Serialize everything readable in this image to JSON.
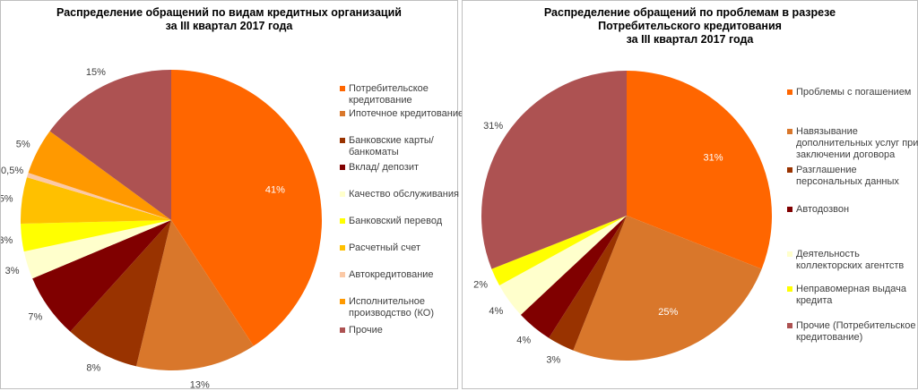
{
  "chart_data": [
    {
      "type": "pie",
      "title": "Распределение обращений по видам кредитных организаций\nза III квартал 2017 года",
      "legend_position": "right",
      "slices": [
        {
          "name": "Потребительское кредитование",
          "value": 41,
          "label": "41%",
          "color": "#FF6600"
        },
        {
          "name": "Ипотечное кредитование",
          "value": 13,
          "label": "13%",
          "color": "#D9772B"
        },
        {
          "name": "Банковские карты/банкоматы",
          "value": 8,
          "label": "8%",
          "color": "#993300"
        },
        {
          "name": "Вклад/ депозит",
          "value": 7,
          "label": "7%",
          "color": "#800000"
        },
        {
          "name": "Качество обслуживания",
          "value": 3,
          "label": "3%",
          "color": "#FFFFCC"
        },
        {
          "name": "Банковский перевод",
          "value": 3,
          "label": "3%",
          "color": "#FFFF00"
        },
        {
          "name": "Расчетный счет",
          "value": 5,
          "label": "5%",
          "color": "#FFC000"
        },
        {
          "name": "Автокредитование",
          "value": 0.5,
          "label": "0,5%",
          "color": "#FBC9A6"
        },
        {
          "name": "Исполнительное производство (КО)",
          "value": 5,
          "label": "5%",
          "color": "#FF9900"
        },
        {
          "name": "Прочие",
          "value": 15,
          "label": "15%",
          "color": "#AD5252"
        }
      ]
    },
    {
      "type": "pie",
      "title": "Распределение обращений по проблемам в разрезе\nПотребительского  кредитования\nза III квартал 2017 года",
      "legend_position": "right",
      "slices": [
        {
          "name": "Проблемы с погашением",
          "value": 31,
          "label": "31%",
          "color": "#FF6600"
        },
        {
          "name": "Навязывание дополнительных услуг при заключении договора",
          "value": 25,
          "label": "25%",
          "color": "#D9772B"
        },
        {
          "name": "Разглашение персональных данных",
          "value": 3,
          "label": "3%",
          "color": "#993300"
        },
        {
          "name": "Автодозвон",
          "value": 4,
          "label": "4%",
          "color": "#800000"
        },
        {
          "name": "Деятельность коллекторских агентств",
          "value": 4,
          "label": "4%",
          "color": "#FFFFCC"
        },
        {
          "name": "Неправомерная выдача кредита",
          "value": 2,
          "label": "2%",
          "color": "#FFFF00"
        },
        {
          "name": "Прочие (Потребительское кредитование)",
          "value": 31,
          "label": "31%",
          "color": "#AD5252"
        }
      ]
    }
  ]
}
